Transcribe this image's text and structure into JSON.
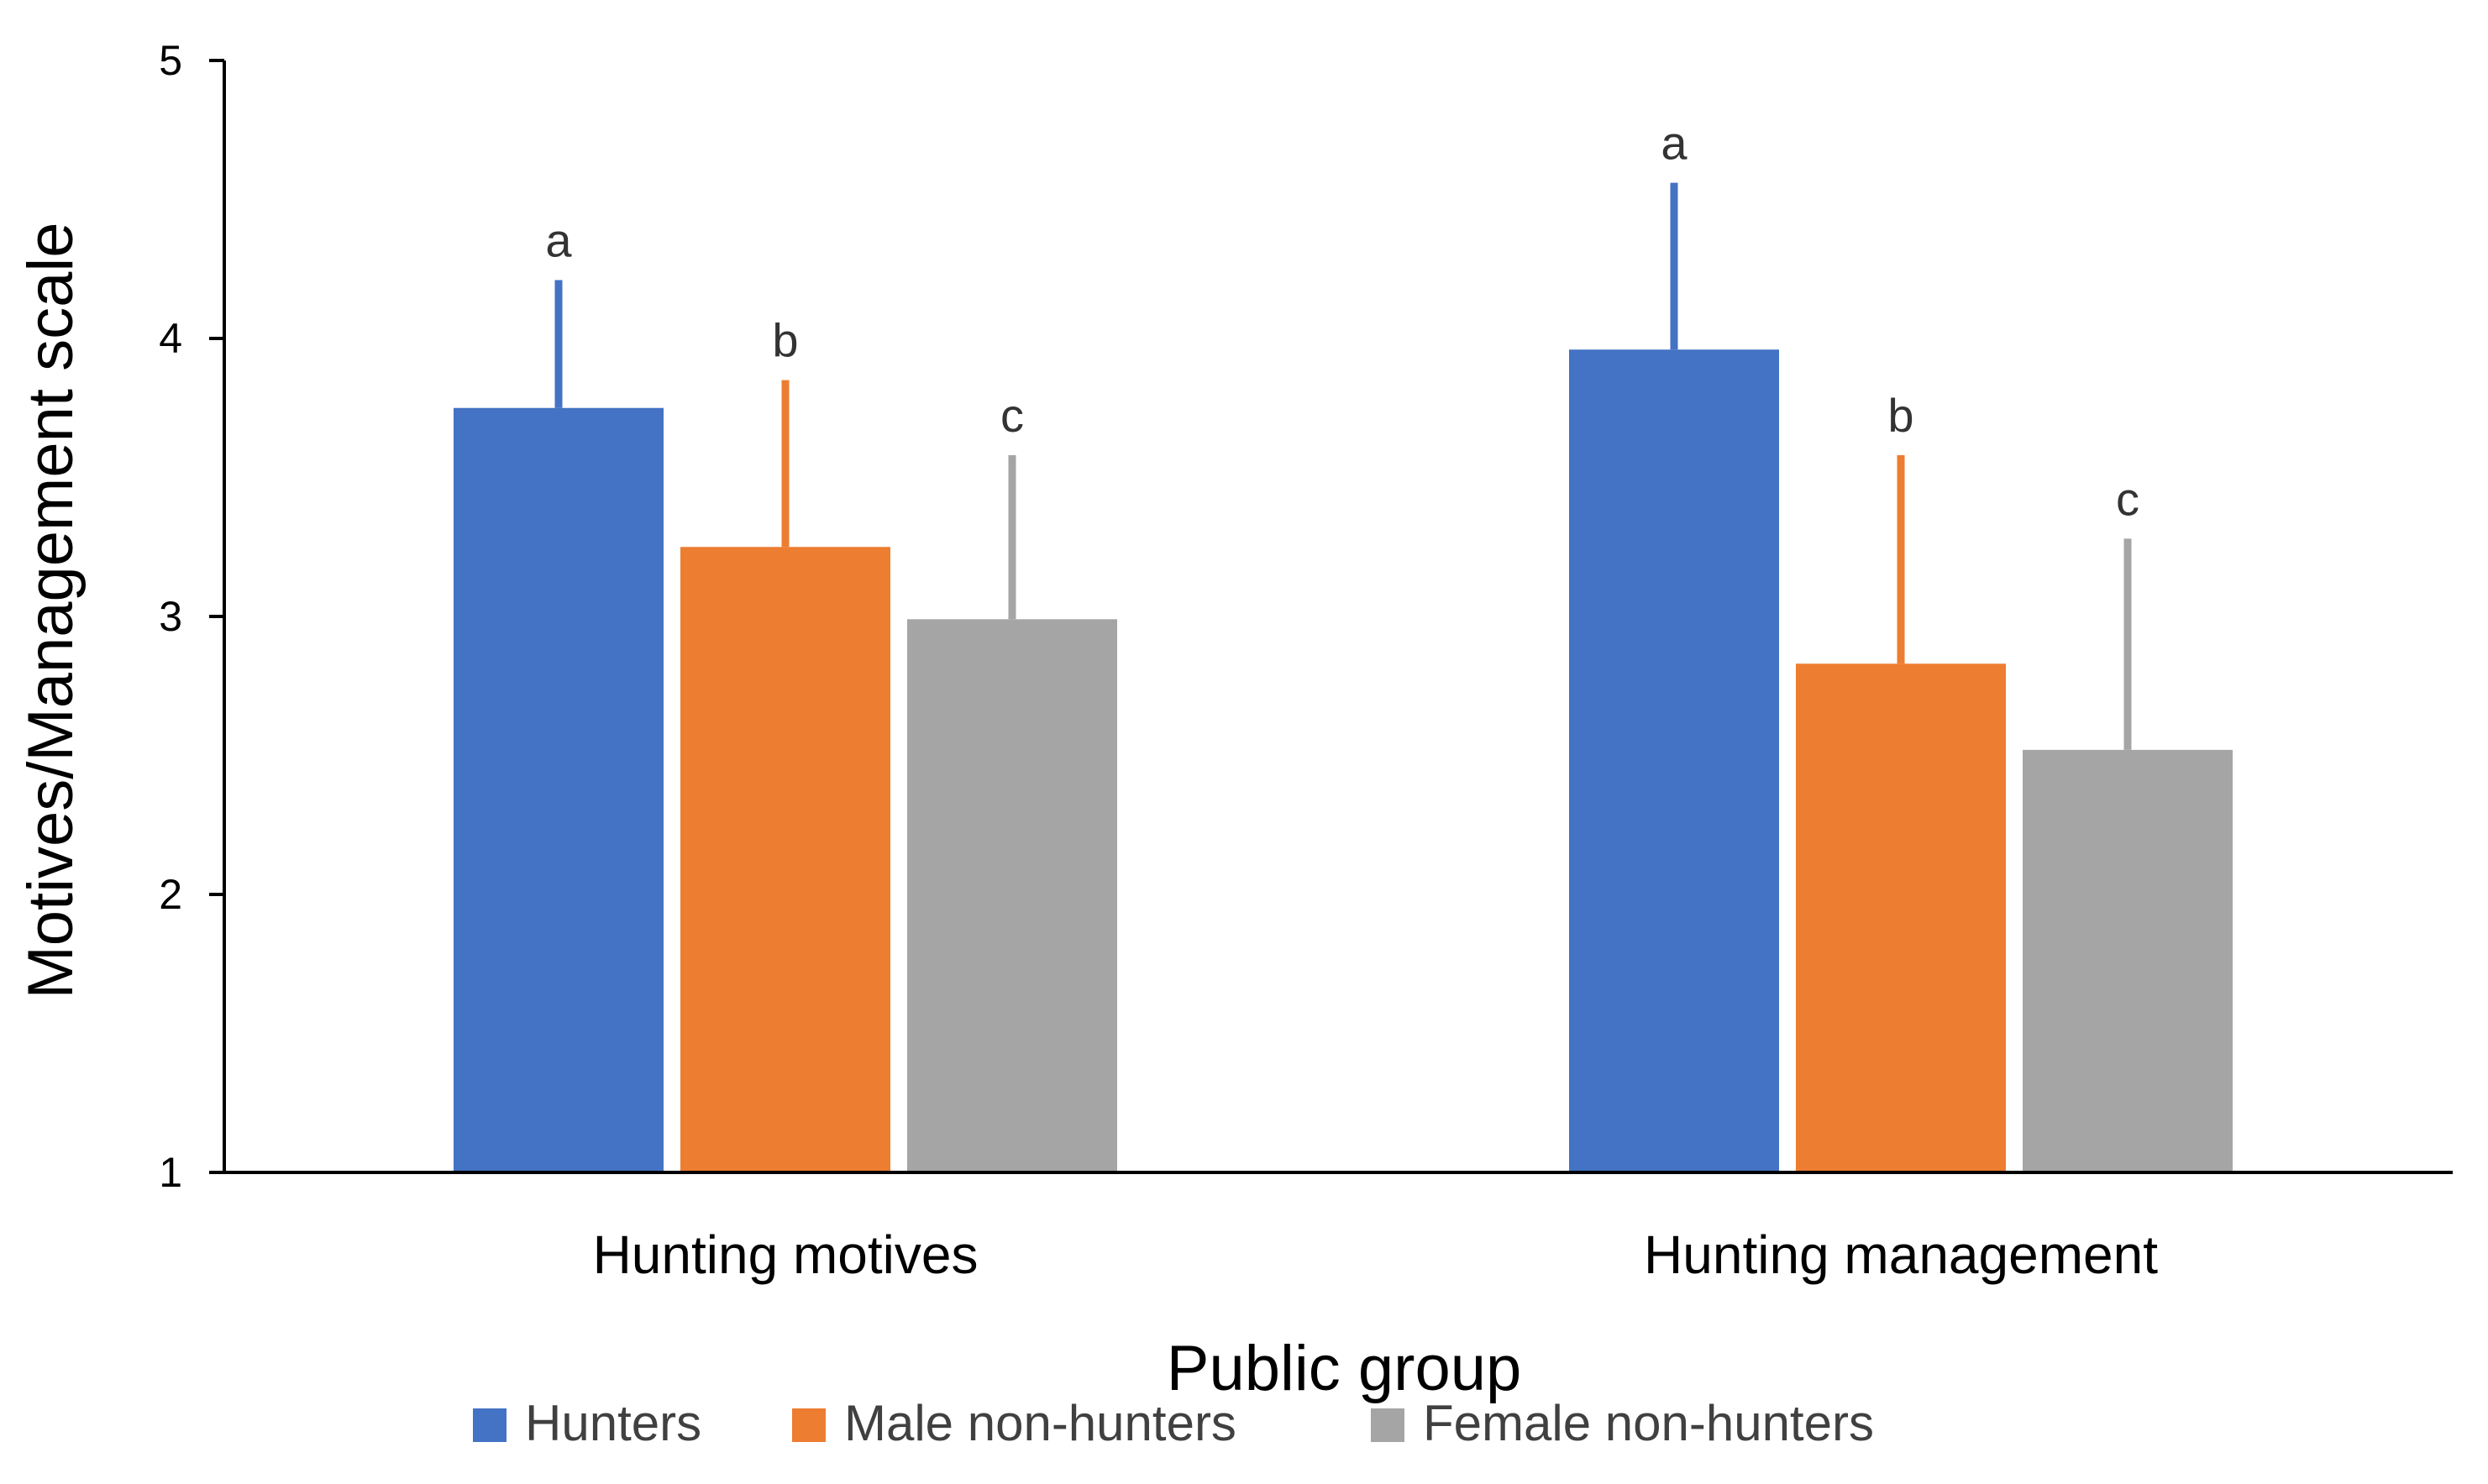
{
  "chart_data": {
    "type": "bar",
    "xlabel": "Public group",
    "ylabel": "Motives/Management scale",
    "ylim": [
      1,
      5
    ],
    "yticks": [
      1,
      2,
      3,
      4,
      5
    ],
    "grid": false,
    "legend_position": "bottom",
    "categories": [
      "Hunting motives",
      "Hunting management"
    ],
    "series": [
      {
        "name": "Hunters",
        "color": "#4472C4",
        "values": [
          3.75,
          3.96
        ],
        "error": [
          0.46,
          0.6
        ],
        "annotations": [
          "a",
          "a"
        ]
      },
      {
        "name": "Male non-hunters",
        "color": "#ED7D31",
        "values": [
          3.25,
          2.83
        ],
        "error": [
          0.6,
          0.75
        ],
        "annotations": [
          "b",
          "b"
        ]
      },
      {
        "name": "Female non-hunters",
        "color": "#A5A5A5",
        "values": [
          2.99,
          2.52
        ],
        "error": [
          0.59,
          0.76
        ],
        "annotations": [
          "c",
          "c"
        ]
      }
    ]
  }
}
